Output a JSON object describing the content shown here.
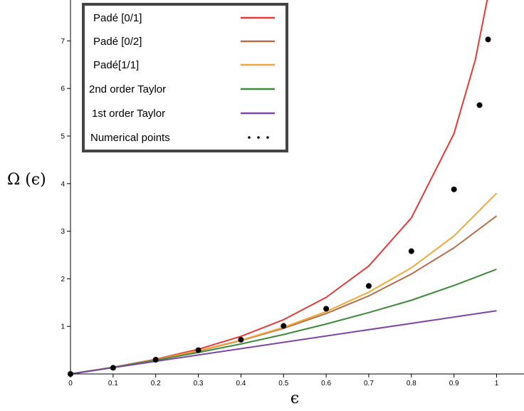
{
  "chart_data": {
    "type": "line",
    "xlabel": "ϵ",
    "ylabel": "Ω (ϵ)",
    "xlim": [
      0,
      1.06
    ],
    "ylim": [
      0,
      7.9
    ],
    "x_ticks": [
      "0",
      "0.1",
      "0.2",
      "0.3",
      "0.4",
      "0.5",
      "0.6",
      "0.7",
      "0.8",
      "0.9",
      "1"
    ],
    "y_ticks": [
      "1",
      "2",
      "3",
      "4",
      "5",
      "6",
      "7"
    ],
    "grid": false,
    "legend_position": "top-left",
    "series": [
      {
        "name": "Padé [0/1]",
        "color": "#e8393b",
        "x": [
          0,
          0.1,
          0.2,
          0.3,
          0.4,
          0.5,
          0.6,
          0.7,
          0.8,
          0.9,
          0.95,
          0.98
        ],
        "y": [
          0,
          0.14,
          0.31,
          0.52,
          0.79,
          1.14,
          1.61,
          2.27,
          3.28,
          5.05,
          6.6,
          7.95
        ]
      },
      {
        "name": "Padé [0/2]",
        "color": "#b5704a",
        "x": [
          0,
          0.1,
          0.2,
          0.3,
          0.4,
          0.5,
          0.6,
          0.7,
          0.8,
          0.9,
          1.0
        ],
        "y": [
          0,
          0.14,
          0.29,
          0.48,
          0.7,
          0.96,
          1.27,
          1.64,
          2.1,
          2.65,
          3.32
        ]
      },
      {
        "name": "Padé[1/1]",
        "color": "#f5a83a",
        "x": [
          0,
          0.1,
          0.2,
          0.3,
          0.4,
          0.5,
          0.6,
          0.7,
          0.8,
          0.9,
          1.0
        ],
        "y": [
          0,
          0.14,
          0.3,
          0.49,
          0.71,
          0.98,
          1.31,
          1.72,
          2.23,
          2.9,
          3.8
        ]
      },
      {
        "name": "2nd order Taylor",
        "color": "#3e8a3c",
        "x": [
          0,
          0.1,
          0.2,
          0.3,
          0.4,
          0.5,
          0.6,
          0.7,
          0.8,
          0.9,
          1.0
        ],
        "y": [
          0,
          0.14,
          0.29,
          0.45,
          0.63,
          0.83,
          1.05,
          1.29,
          1.55,
          1.86,
          2.2
        ]
      },
      {
        "name": "1st order Taylor",
        "color": "#7d46a6",
        "x": [
          0,
          1.0
        ],
        "y": [
          0,
          1.33
        ]
      },
      {
        "name": "Numerical points",
        "color": "#000000",
        "type": "scatter",
        "x": [
          0,
          0.1,
          0.2,
          0.3,
          0.4,
          0.5,
          0.6,
          0.7,
          0.8,
          0.9,
          0.96,
          0.98
        ],
        "y": [
          0,
          0.13,
          0.3,
          0.5,
          0.72,
          1.01,
          1.37,
          1.85,
          2.58,
          3.88,
          5.65,
          7.03
        ]
      }
    ]
  }
}
